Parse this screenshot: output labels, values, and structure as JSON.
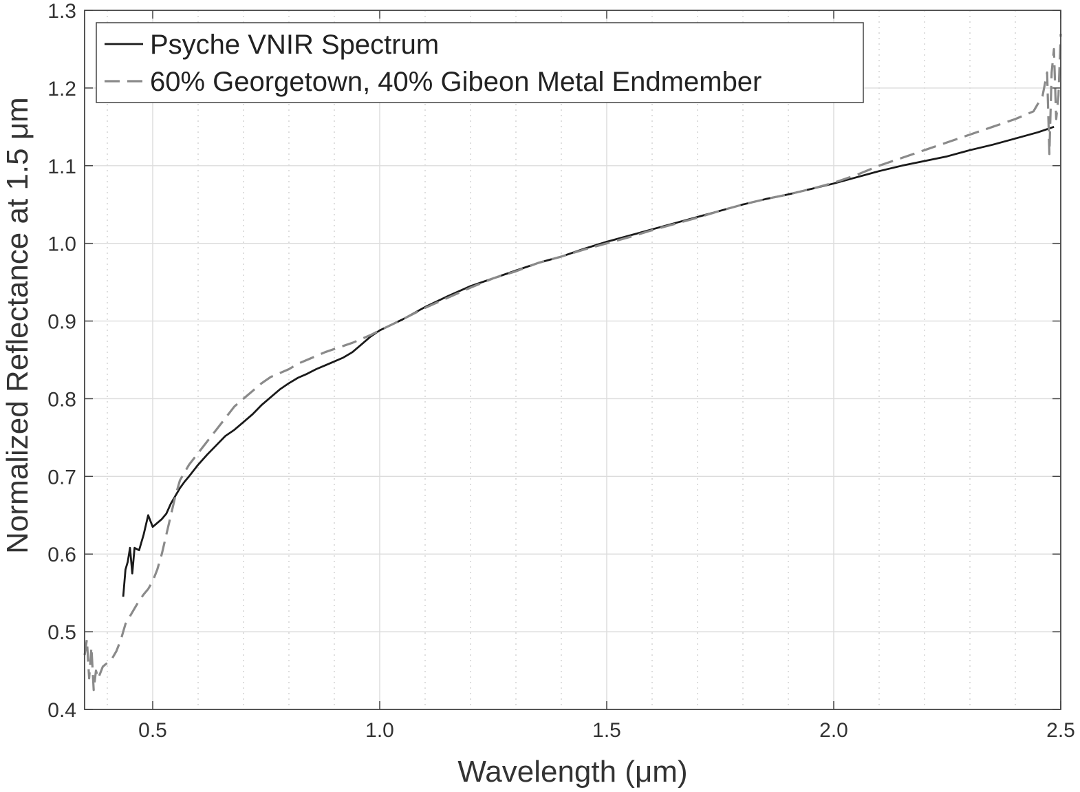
{
  "chart_data": {
    "type": "line",
    "title": "",
    "xlabel": "Wavelength (μm)",
    "ylabel": "Normalized Reflectance at 1.5 μm",
    "xlim": [
      0.35,
      2.5
    ],
    "ylim": [
      0.4,
      1.3
    ],
    "x_ticks": [
      0.5,
      1.0,
      1.5,
      2.0,
      2.5
    ],
    "x_tick_labels": [
      "0.5",
      "1.0",
      "1.5",
      "2.0",
      "2.5"
    ],
    "y_ticks": [
      0.4,
      0.5,
      0.6,
      0.7,
      0.8,
      0.9,
      1.0,
      1.1,
      1.2,
      1.3
    ],
    "y_tick_labels": [
      "0.4",
      "0.5",
      "0.6",
      "0.7",
      "0.8",
      "0.9",
      "1.0",
      "1.1",
      "1.2",
      "1.3"
    ],
    "x_minor_step": 0.1,
    "grid": true,
    "legend_position": "top-left",
    "series": [
      {
        "name": "Psyche VNIR Spectrum",
        "color": "#1a1a1a",
        "line_style": "solid",
        "x": [
          0.435,
          0.44,
          0.445,
          0.45,
          0.455,
          0.46,
          0.47,
          0.48,
          0.49,
          0.5,
          0.51,
          0.52,
          0.53,
          0.54,
          0.55,
          0.56,
          0.57,
          0.58,
          0.6,
          0.62,
          0.64,
          0.66,
          0.68,
          0.7,
          0.72,
          0.74,
          0.76,
          0.78,
          0.8,
          0.82,
          0.84,
          0.86,
          0.88,
          0.9,
          0.92,
          0.94,
          0.96,
          0.98,
          1.0,
          1.05,
          1.1,
          1.15,
          1.2,
          1.25,
          1.3,
          1.35,
          1.4,
          1.45,
          1.5,
          1.55,
          1.6,
          1.65,
          1.7,
          1.75,
          1.8,
          1.85,
          1.9,
          1.95,
          2.0,
          2.05,
          2.1,
          2.15,
          2.2,
          2.25,
          2.3,
          2.35,
          2.4,
          2.45,
          2.485
        ],
        "y": [
          0.545,
          0.58,
          0.59,
          0.608,
          0.575,
          0.608,
          0.605,
          0.625,
          0.65,
          0.635,
          0.64,
          0.645,
          0.652,
          0.665,
          0.675,
          0.685,
          0.693,
          0.7,
          0.715,
          0.728,
          0.74,
          0.752,
          0.76,
          0.77,
          0.78,
          0.792,
          0.802,
          0.812,
          0.82,
          0.827,
          0.832,
          0.838,
          0.843,
          0.848,
          0.853,
          0.86,
          0.87,
          0.88,
          0.888,
          0.902,
          0.918,
          0.932,
          0.945,
          0.955,
          0.965,
          0.975,
          0.983,
          0.993,
          1.002,
          1.01,
          1.018,
          1.026,
          1.034,
          1.042,
          1.05,
          1.057,
          1.063,
          1.07,
          1.077,
          1.085,
          1.093,
          1.1,
          1.106,
          1.112,
          1.12,
          1.127,
          1.135,
          1.143,
          1.15
        ]
      },
      {
        "name": "60% Georgetown, 40% Gibeon Metal Endmember",
        "color": "#8a8a8a",
        "line_style": "dashed",
        "x": [
          0.35,
          0.355,
          0.36,
          0.365,
          0.37,
          0.375,
          0.38,
          0.39,
          0.4,
          0.41,
          0.42,
          0.43,
          0.44,
          0.45,
          0.46,
          0.47,
          0.48,
          0.49,
          0.5,
          0.51,
          0.52,
          0.53,
          0.54,
          0.55,
          0.56,
          0.57,
          0.58,
          0.6,
          0.62,
          0.64,
          0.66,
          0.68,
          0.7,
          0.72,
          0.74,
          0.76,
          0.78,
          0.8,
          0.82,
          0.84,
          0.86,
          0.88,
          0.9,
          0.92,
          0.94,
          0.96,
          0.98,
          1.0,
          1.05,
          1.1,
          1.15,
          1.2,
          1.25,
          1.3,
          1.35,
          1.4,
          1.45,
          1.5,
          1.55,
          1.6,
          1.65,
          1.7,
          1.75,
          1.8,
          1.85,
          1.9,
          1.95,
          2.0,
          2.05,
          2.1,
          2.15,
          2.2,
          2.25,
          2.3,
          2.35,
          2.4,
          2.44,
          2.46,
          2.47,
          2.475,
          2.48,
          2.485,
          2.49,
          2.495,
          2.5
        ],
        "y": [
          0.47,
          0.49,
          0.44,
          0.48,
          0.425,
          0.45,
          0.44,
          0.455,
          0.46,
          0.465,
          0.475,
          0.49,
          0.51,
          0.52,
          0.53,
          0.54,
          0.548,
          0.555,
          0.565,
          0.58,
          0.6,
          0.625,
          0.65,
          0.675,
          0.695,
          0.705,
          0.715,
          0.73,
          0.745,
          0.76,
          0.775,
          0.79,
          0.8,
          0.81,
          0.82,
          0.828,
          0.833,
          0.838,
          0.845,
          0.85,
          0.855,
          0.86,
          0.864,
          0.868,
          0.872,
          0.877,
          0.882,
          0.888,
          0.902,
          0.917,
          0.93,
          0.943,
          0.955,
          0.964,
          0.975,
          0.983,
          0.992,
          1.0,
          1.008,
          1.017,
          1.025,
          1.033,
          1.042,
          1.05,
          1.057,
          1.063,
          1.07,
          1.078,
          1.088,
          1.1,
          1.11,
          1.12,
          1.13,
          1.14,
          1.15,
          1.16,
          1.17,
          1.19,
          1.22,
          1.115,
          1.22,
          1.25,
          1.16,
          1.19,
          1.27
        ]
      }
    ]
  }
}
